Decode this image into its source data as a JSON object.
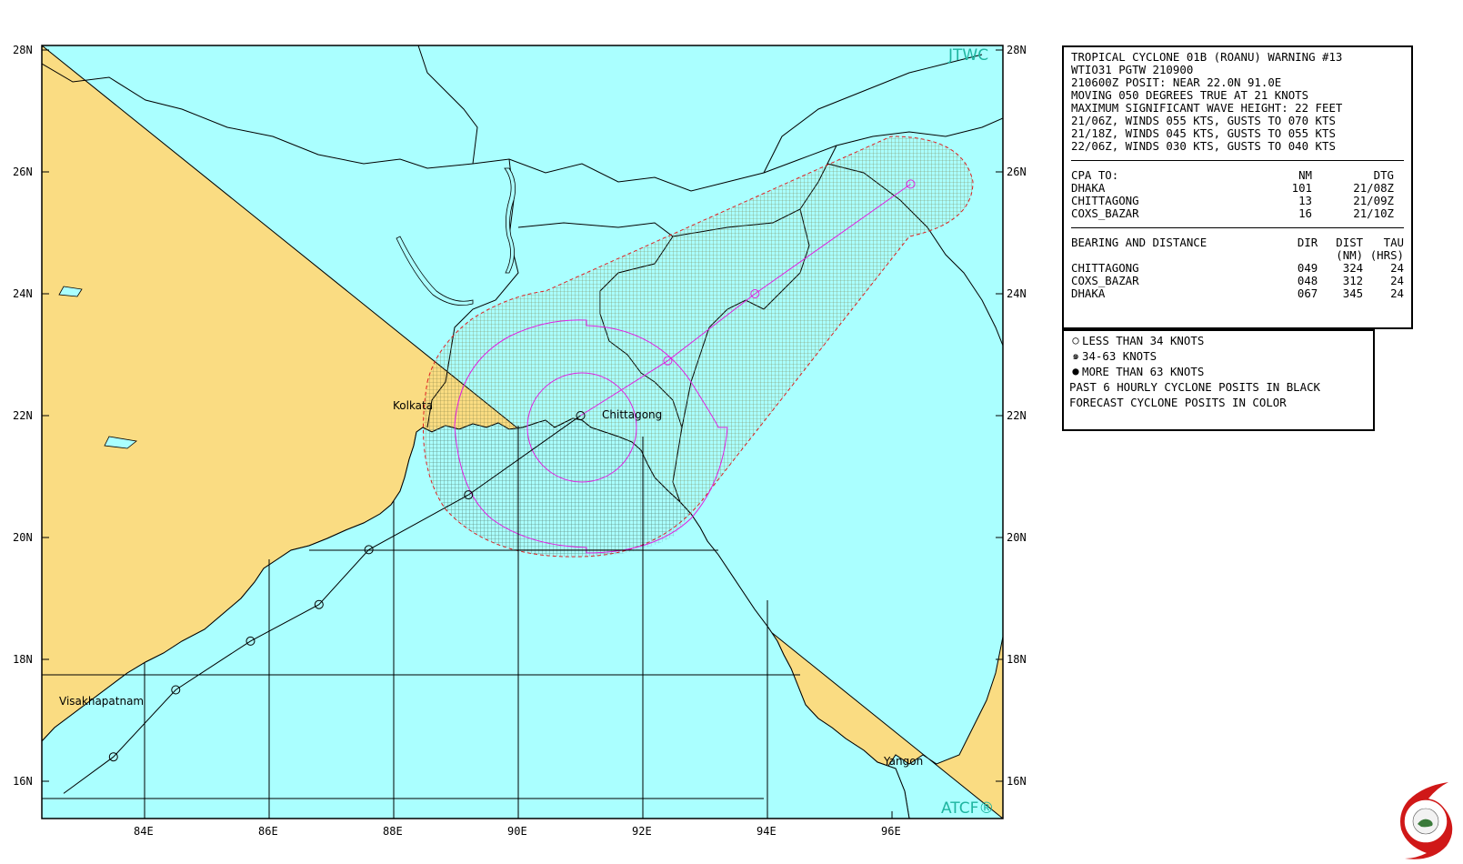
{
  "map": {
    "brand_top": "JTWC",
    "brand_bottom": "ATCF®",
    "lat_labels": [
      "28N",
      "26N",
      "24N",
      "22N",
      "20N",
      "18N",
      "16N"
    ],
    "lon_labels": [
      "84E",
      "86E",
      "88E",
      "90E",
      "92E",
      "94E",
      "96E"
    ],
    "cities": {
      "kolkata": "Kolkata",
      "chittagong": "Chittagong",
      "visakhapatnam": "Visakhapatnam",
      "yangon": "Yangon"
    },
    "colors": {
      "land": "#fadc82",
      "sea": "#aaffff",
      "forecast_track": "#e020e0",
      "past_track": "#000000",
      "danger_outline": "#e02020"
    },
    "past_track": [
      [
        82.7,
        15.8
      ],
      [
        83.5,
        16.4
      ],
      [
        84.5,
        17.5
      ],
      [
        85.7,
        18.3
      ],
      [
        86.8,
        18.9
      ],
      [
        87.6,
        19.8
      ],
      [
        89.2,
        20.7
      ],
      [
        91.0,
        22.0
      ]
    ],
    "forecast_track": [
      [
        91.0,
        22.0
      ],
      [
        92.4,
        22.9
      ],
      [
        93.8,
        24.0
      ],
      [
        96.3,
        25.8
      ]
    ]
  },
  "warning": {
    "lines": [
      "TROPICAL CYCLONE 01B (ROANU) WARNING #13",
      "WTIO31 PGTW 210900",
      "210600Z POSIT: NEAR 22.0N 91.0E",
      "MOVING 050 DEGREES TRUE AT 21 KNOTS",
      "MAXIMUM SIGNIFICANT WAVE HEIGHT: 22 FEET",
      "21/06Z, WINDS 055 KTS, GUSTS TO 070 KTS",
      "21/18Z, WINDS 045 KTS, GUSTS TO 055 KTS",
      "22/06Z, WINDS 030 KTS, GUSTS TO 040 KTS"
    ],
    "cpa": {
      "header": {
        "label": "CPA TO:",
        "nm": "NM",
        "dtg": "DTG"
      },
      "rows": [
        {
          "place": "DHAKA",
          "nm": "101",
          "dtg": "21/08Z"
        },
        {
          "place": "CHITTAGONG",
          "nm": "13",
          "dtg": "21/09Z"
        },
        {
          "place": "COXS_BAZAR",
          "nm": "16",
          "dtg": "21/10Z"
        }
      ]
    },
    "bearing": {
      "header": {
        "label": "BEARING AND DISTANCE",
        "dir": "DIR",
        "dist": "DIST",
        "tau": "TAU",
        "dist_unit": "(NM)",
        "tau_unit": "(HRS)"
      },
      "rows": [
        {
          "place": "CHITTAGONG",
          "dir": "049",
          "dist": "324",
          "tau": "24"
        },
        {
          "place": "COXS_BAZAR",
          "dir": "048",
          "dist": "312",
          "tau": "24"
        },
        {
          "place": "DHAKA",
          "dir": "067",
          "dist": "345",
          "tau": "24"
        }
      ]
    }
  },
  "legend": {
    "items": [
      {
        "symbol": "○",
        "text": "LESS THAN 34 KNOTS"
      },
      {
        "symbol": "๑",
        "text": "34-63 KNOTS"
      },
      {
        "symbol": "●",
        "text": "MORE THAN 63 KNOTS"
      }
    ],
    "notes": [
      "PAST 6 HOURLY CYCLONE POSITS IN BLACK",
      "FORECAST CYCLONE POSITS IN COLOR"
    ]
  }
}
